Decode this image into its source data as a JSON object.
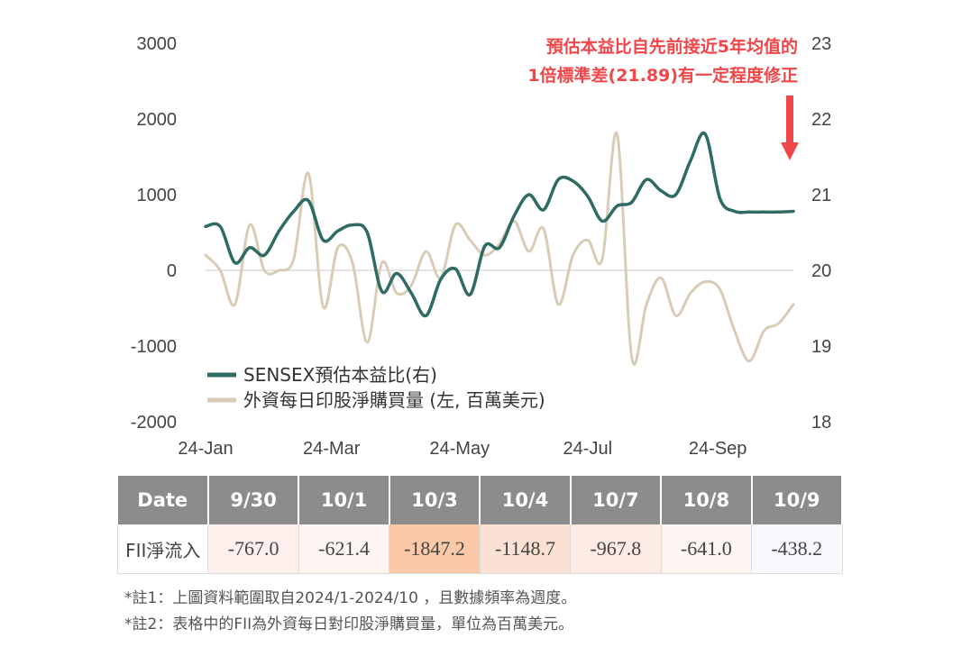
{
  "chart_data": {
    "type": "line",
    "title": "",
    "left_axis": {
      "ylim": [
        -2000,
        3000
      ],
      "ticks": [
        "3000",
        "2000",
        "1000",
        "0",
        "-1000",
        "-2000"
      ]
    },
    "right_axis": {
      "ylim": [
        18,
        23
      ],
      "ticks": [
        "23",
        "22",
        "21",
        "20",
        "19",
        "18"
      ]
    },
    "x_ticks": [
      "24-Jan",
      "24-Mar",
      "24-May",
      "24-Jul",
      "24-Sep"
    ],
    "legend": {
      "placement": "lower-left"
    },
    "series": [
      {
        "name": "SENSEX預估本益比(右)",
        "axis": "right",
        "color": "#2f6b63",
        "x": [
          "2024-01-01",
          "2024-01-08",
          "2024-01-15",
          "2024-01-22",
          "2024-01-29",
          "2024-02-05",
          "2024-02-12",
          "2024-02-19",
          "2024-02-26",
          "2024-03-04",
          "2024-03-11",
          "2024-03-18",
          "2024-03-25",
          "2024-04-01",
          "2024-04-08",
          "2024-04-15",
          "2024-04-22",
          "2024-04-29",
          "2024-05-06",
          "2024-05-13",
          "2024-05-20",
          "2024-05-27",
          "2024-06-03",
          "2024-06-10",
          "2024-06-17",
          "2024-06-24",
          "2024-07-01",
          "2024-07-08",
          "2024-07-15",
          "2024-07-22",
          "2024-07-29",
          "2024-08-05",
          "2024-08-12",
          "2024-08-19",
          "2024-08-26",
          "2024-09-02",
          "2024-09-09",
          "2024-09-16",
          "2024-09-23",
          "2024-09-30",
          "2024-10-07"
        ],
        "values": [
          20.58,
          20.58,
          20.1,
          20.3,
          20.2,
          20.52,
          20.78,
          20.92,
          20.4,
          20.52,
          20.6,
          20.5,
          19.72,
          19.96,
          19.7,
          19.4,
          19.88,
          20.02,
          19.68,
          20.32,
          20.3,
          20.72,
          21.0,
          20.8,
          21.2,
          21.18,
          20.98,
          20.65,
          20.85,
          20.9,
          21.2,
          21.05,
          21.0,
          21.45,
          21.8,
          20.95,
          20.78,
          20.77,
          20.77,
          20.77,
          20.78
        ],
        "values_note": ""
      },
      {
        "name": "外資每日印股淨購買量 (左, 百萬美元)",
        "axis": "left",
        "color": "#d8ccb6",
        "x": [
          "2024-01-01",
          "2024-01-08",
          "2024-01-15",
          "2024-01-22",
          "2024-01-29",
          "2024-02-05",
          "2024-02-12",
          "2024-02-19",
          "2024-02-26",
          "2024-03-04",
          "2024-03-11",
          "2024-03-18",
          "2024-03-25",
          "2024-04-01",
          "2024-04-08",
          "2024-04-15",
          "2024-04-22",
          "2024-04-29",
          "2024-05-06",
          "2024-05-13",
          "2024-05-20",
          "2024-05-27",
          "2024-06-03",
          "2024-06-10",
          "2024-06-17",
          "2024-06-24",
          "2024-07-01",
          "2024-07-08",
          "2024-07-15",
          "2024-07-22",
          "2024-07-29",
          "2024-08-05",
          "2024-08-12",
          "2024-08-19",
          "2024-08-26",
          "2024-09-02",
          "2024-09-09",
          "2024-09-16",
          "2024-09-23",
          "2024-09-30",
          "2024-10-07"
        ],
        "values": [
          200,
          0,
          -450,
          600,
          0,
          0,
          150,
          1280,
          -480,
          300,
          100,
          -950,
          100,
          -300,
          -200,
          250,
          -100,
          600,
          400,
          200,
          350,
          650,
          250,
          550,
          -450,
          200,
          400,
          150,
          1800,
          -1150,
          -450,
          -100,
          -600,
          -300,
          -150,
          -250,
          -800,
          -1200,
          -800,
          -700,
          -450
        ]
      }
    ],
    "annotation": {
      "lines": [
        "預估本益比自先前接近5年均值的",
        "1倍標準差(21.89)有一定程度修正"
      ],
      "arrow_color": "#f0474a"
    }
  },
  "table": {
    "header_label": "Date",
    "row_label": "FII淨流入",
    "columns": [
      "9/30",
      "10/1",
      "10/3",
      "10/4",
      "10/7",
      "10/8",
      "10/9"
    ],
    "values": [
      "-767.0",
      "-621.4",
      "-1847.2",
      "-1148.7",
      "-967.8",
      "-641.0",
      "-438.2"
    ],
    "cell_colors": [
      "#fdf0ec",
      "#fdf5f2",
      "#f9c9a8",
      "#fbe1d4",
      "#fcebe3",
      "#fdf5f2",
      "#f8f8ff"
    ]
  },
  "notes": {
    "note1": "*註1：上圖資料範圍取自2024/1-2024/10 ，且數據頻率為週度。",
    "note2": "*註2：表格中的FII為外資每日對印股淨購買量，單位為百萬美元。"
  }
}
